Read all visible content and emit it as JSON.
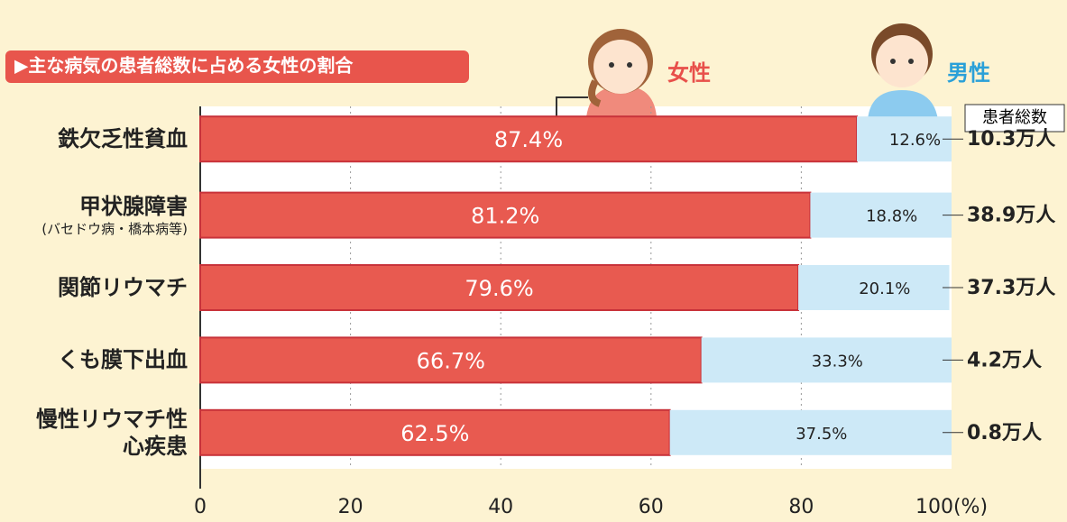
{
  "chart_data": {
    "type": "bar",
    "orientation": "horizontal",
    "stacked": true,
    "subtitle": "▶主な病気の患者総数に占める女性の割合",
    "categories": [
      "鉄欠乏性貧血",
      "甲状腺障害",
      "関節リウマチ",
      "くも膜下出血",
      "慢性リウマチ性心疾患"
    ],
    "category_notes": [
      null,
      "(バセドウ病・橋本病等)",
      null,
      null,
      null
    ],
    "series": [
      {
        "name": "女性",
        "color": "#e85a50",
        "values": [
          87.4,
          81.2,
          79.6,
          66.7,
          62.5
        ],
        "value_labels": [
          "87.4%",
          "81.2%",
          "79.6%",
          "66.7%",
          "62.5%"
        ]
      },
      {
        "name": "男性",
        "color": "#cde9f7",
        "values": [
          12.6,
          18.8,
          20.1,
          33.3,
          37.5
        ],
        "value_labels": [
          "12.6%",
          "18.8%",
          "20.1%",
          "33.3%",
          "37.5%"
        ]
      }
    ],
    "totals_title": "患者総数",
    "totals": [
      "10.3万人",
      "38.9万人",
      "37.3万人",
      "4.2万人",
      "0.8万人"
    ],
    "xlim": [
      0,
      100
    ],
    "xticks": [
      0,
      20,
      40,
      60,
      80,
      {
        "value": 100,
        "label": "100(%)"
      }
    ],
    "grid": true
  }
}
